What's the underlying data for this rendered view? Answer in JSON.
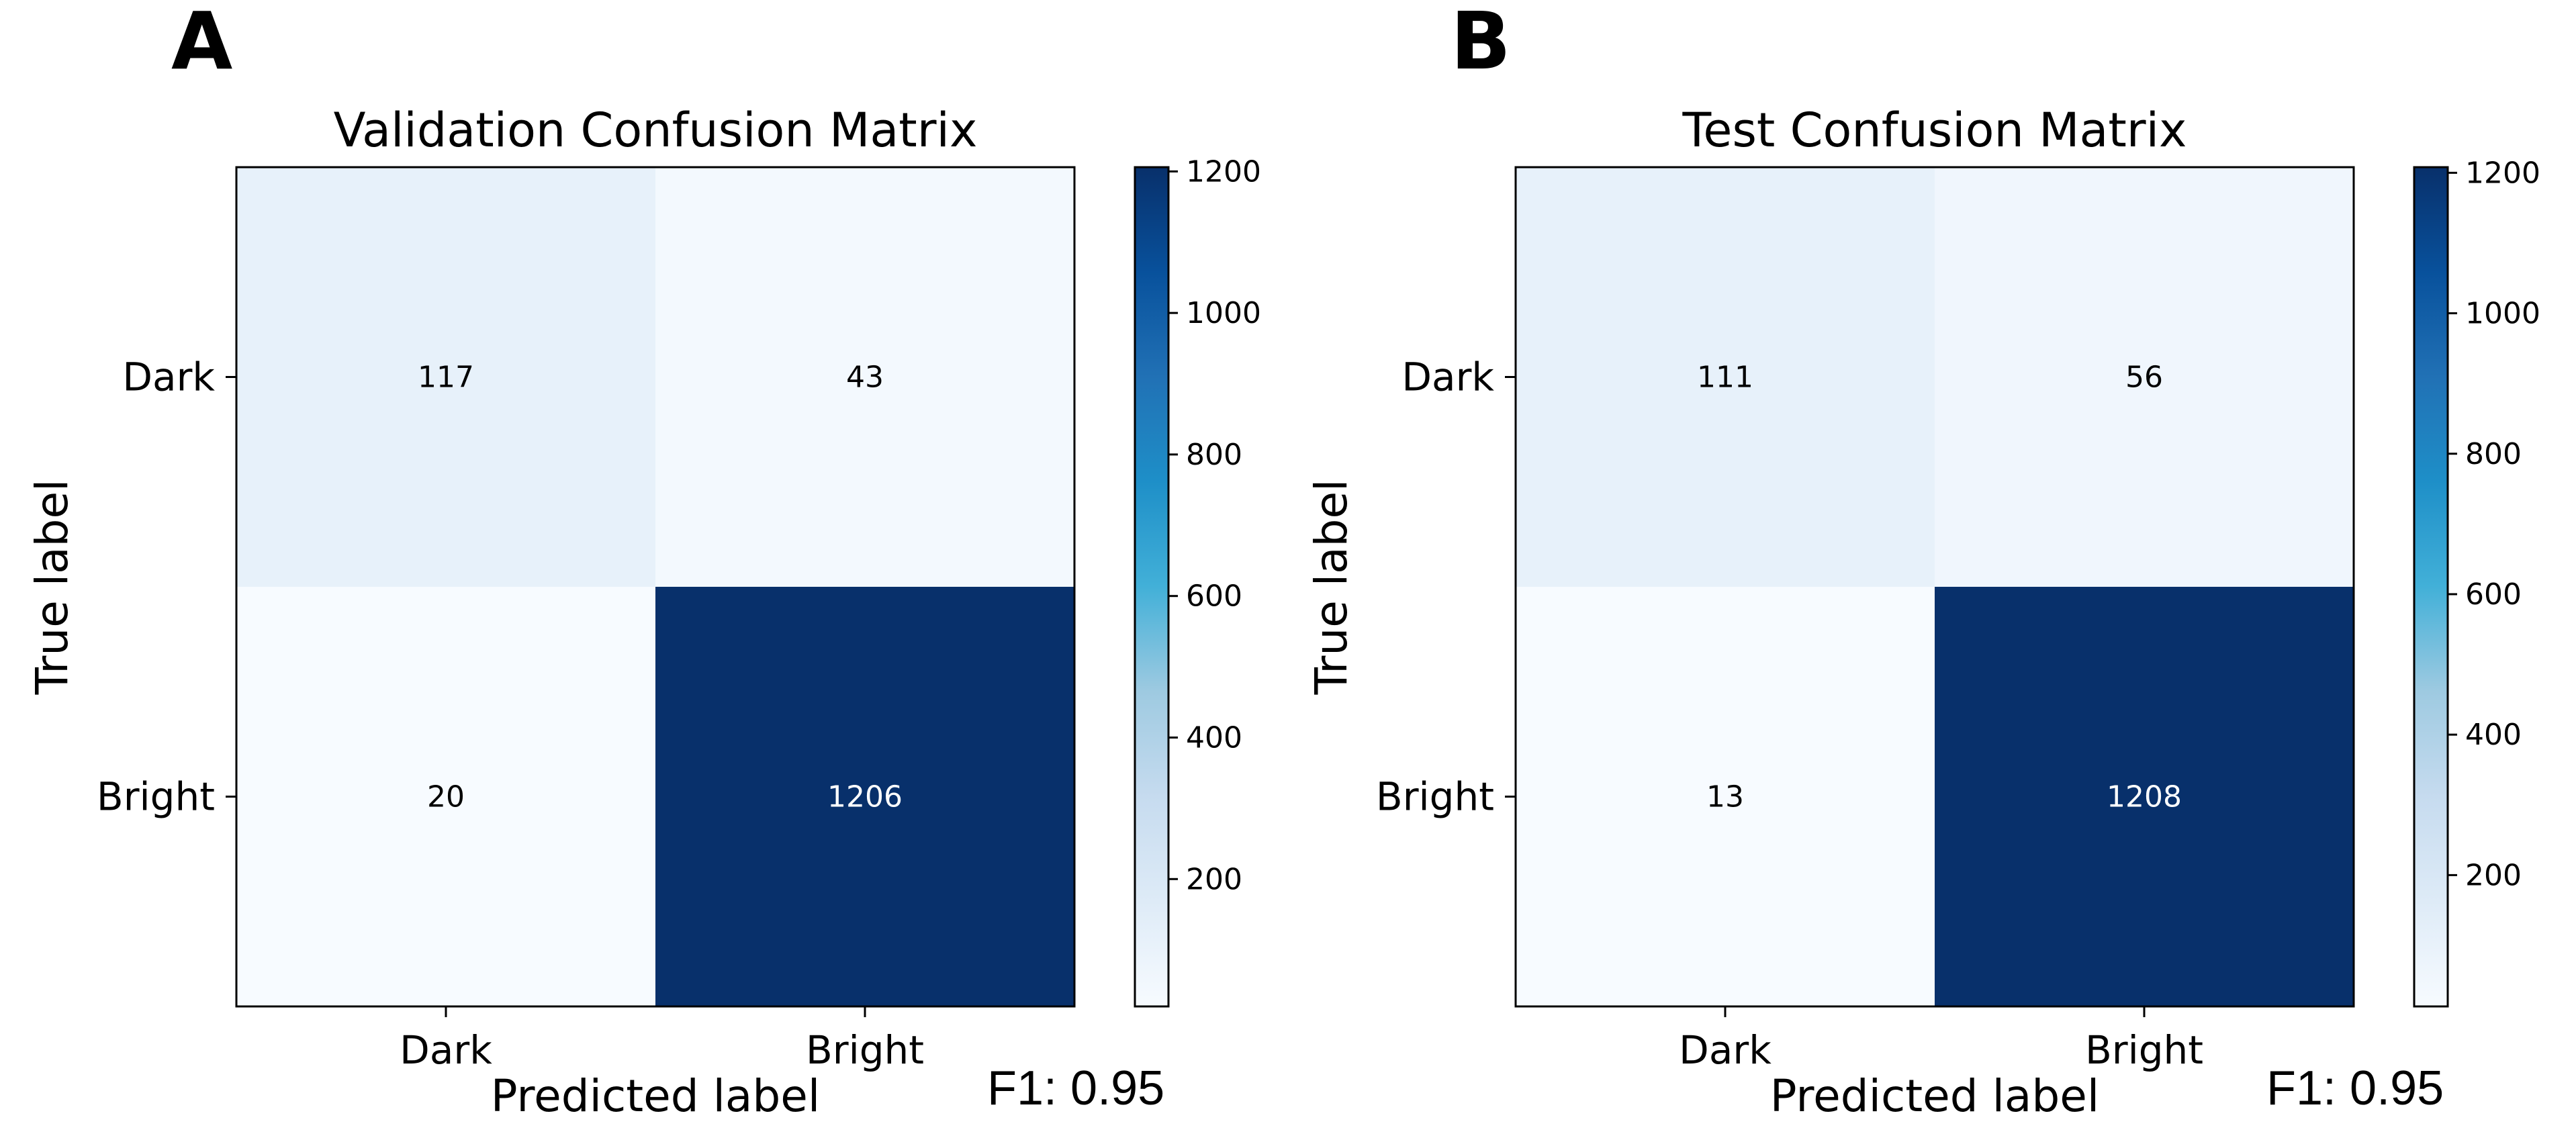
{
  "colors": {
    "low": "#f7fbff",
    "high": "#08306b",
    "dark_text": "#000000",
    "light_text": "#ffffff",
    "frame": "#000000"
  },
  "chart_data": [
    {
      "type": "heatmap",
      "panel_label": "A",
      "title": "Validation Confusion Matrix",
      "xlabel": "Predicted label",
      "ylabel": "True label",
      "x_categories": [
        "Dark",
        "Bright"
      ],
      "y_categories": [
        "Dark",
        "Bright"
      ],
      "values": [
        [
          117,
          43
        ],
        [
          20,
          1206
        ]
      ],
      "colorbar": {
        "range": [
          20,
          1206
        ],
        "ticks": [
          "200",
          "400",
          "600",
          "800",
          "1000",
          "1200"
        ]
      },
      "metric": "F1: 0.95"
    },
    {
      "type": "heatmap",
      "panel_label": "B",
      "title": "Test Confusion Matrix",
      "xlabel": "Predicted label",
      "ylabel": "True label",
      "x_categories": [
        "Dark",
        "Bright"
      ],
      "y_categories": [
        "Dark",
        "Bright"
      ],
      "values": [
        [
          111,
          56
        ],
        [
          13,
          1208
        ]
      ],
      "colorbar": {
        "range": [
          13,
          1208
        ],
        "ticks": [
          "200",
          "400",
          "600",
          "800",
          "1000",
          "1200"
        ]
      },
      "metric": "F1: 0.95"
    }
  ]
}
